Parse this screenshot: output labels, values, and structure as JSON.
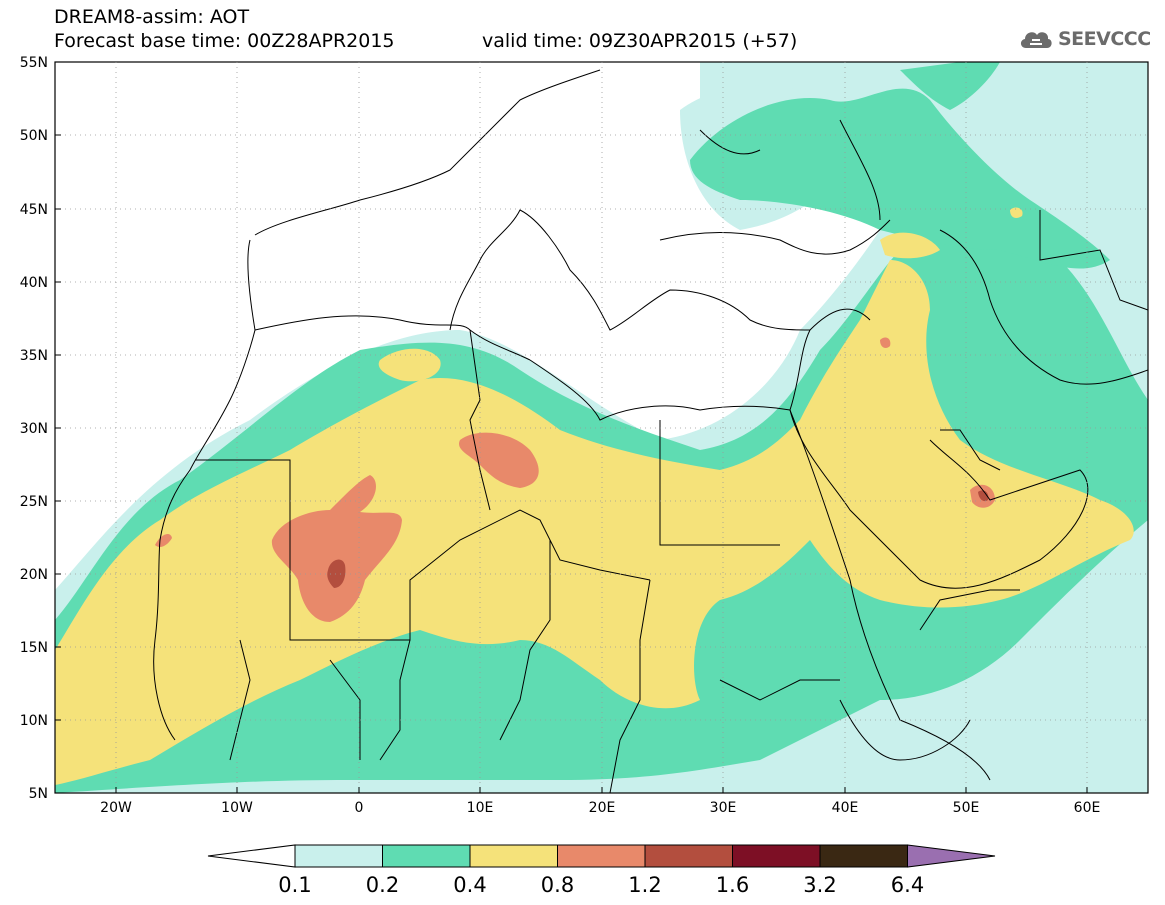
{
  "header": {
    "line1": "DREAM8-assim: AOT",
    "line2": "Forecast base time: 00Z28APR2015",
    "valid": "valid time: 09Z30APR2015 (+57)"
  },
  "logo": {
    "text": "SEEVCCC",
    "icon": "cloud-logo-icon"
  },
  "map": {
    "lat_labels": [
      "55N",
      "50N",
      "45N",
      "40N",
      "35N",
      "30N",
      "25N",
      "20N",
      "15N",
      "10N",
      "5N"
    ],
    "lon_labels": [
      "20W",
      "10W",
      "0",
      "10E",
      "20E",
      "30E",
      "40E",
      "50E",
      "60E"
    ]
  },
  "colorbar": {
    "labels": [
      "0.1",
      "0.2",
      "0.4",
      "0.8",
      "1.2",
      "1.6",
      "3.2",
      "6.4"
    ],
    "colors": [
      "#c9f0ec",
      "#5fdcb2",
      "#f5e27a",
      "#e8896a",
      "#b34e3e",
      "#7d0f25",
      "#3a2813",
      "#9a6fb0"
    ]
  },
  "colors": {
    "ocean": "#ffffff",
    "level_0_1": "#c9f0ec",
    "level_0_2": "#5fdcb2",
    "level_0_4": "#f5e27a",
    "level_0_8": "#e8896a",
    "level_1_2": "#b34e3e"
  }
}
